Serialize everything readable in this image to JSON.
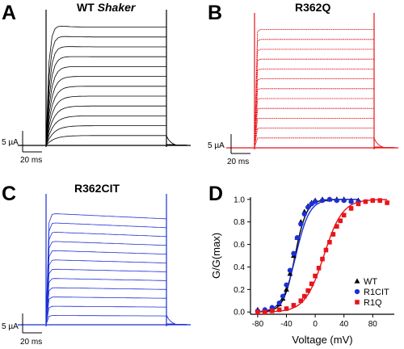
{
  "panels": [
    {
      "letter": "A",
      "title": "WT ",
      "title_italic": "Shaker",
      "color": "#000000",
      "scale_current": "5 µA",
      "scale_time": "20 ms"
    },
    {
      "letter": "B",
      "title": "R362Q",
      "color": "#e8141b",
      "scale_current": "5 µA",
      "scale_time": "20 ms"
    },
    {
      "letter": "C",
      "title": "R362CIT",
      "color": "#1b2fd6",
      "scale_current": "5 µA",
      "scale_time": "20 ms"
    },
    {
      "letter": "D"
    }
  ],
  "chart_data": {
    "type": "scatter",
    "ylabel": "G/G(max)",
    "xlabel": "Voltage (mV)",
    "xlim": [
      -90,
      110
    ],
    "ylim": [
      -0.02,
      1.02
    ],
    "xticks": [
      "-80",
      "-40",
      "0",
      "40",
      "80"
    ],
    "xtick_values": [
      -80,
      -40,
      0,
      40,
      80
    ],
    "yticks": [
      "0.0",
      "0.2",
      "0.4",
      "0.6",
      "0.8",
      "1.0"
    ],
    "ytick_values": [
      0,
      0.2,
      0.4,
      0.6,
      0.8,
      1.0
    ],
    "legend_position": "lower-right",
    "series": [
      {
        "name": "WT",
        "color": "#000000",
        "marker": "triangle",
        "x": [
          -80,
          -70,
          -60,
          -50,
          -45,
          -40,
          -35,
          -30,
          -25,
          -20,
          -15,
          -10,
          -5,
          0,
          10,
          20,
          30,
          40,
          50,
          60
        ],
        "y": [
          0.02,
          0.02,
          0.03,
          0.07,
          0.12,
          0.2,
          0.34,
          0.5,
          0.66,
          0.8,
          0.89,
          0.94,
          0.97,
          0.99,
          1.0,
          1.0,
          1.0,
          1.0,
          0.99,
          0.99
        ]
      },
      {
        "name": "R1CIT",
        "color": "#1b2fd6",
        "marker": "circle",
        "x": [
          -80,
          -70,
          -60,
          -50,
          -45,
          -40,
          -35,
          -30,
          -25,
          -20,
          -15,
          -10,
          -5,
          0,
          10,
          20,
          30,
          40,
          50,
          60
        ],
        "y": [
          0.01,
          0.02,
          0.04,
          0.08,
          0.14,
          0.24,
          0.37,
          0.52,
          0.66,
          0.78,
          0.87,
          0.93,
          0.96,
          0.98,
          0.99,
          1.0,
          0.99,
          0.99,
          0.98,
          0.98
        ]
      },
      {
        "name": "R1Q",
        "color": "#e8141b",
        "marker": "square",
        "x": [
          -80,
          -70,
          -60,
          -50,
          -40,
          -30,
          -20,
          -15,
          -10,
          -5,
          0,
          5,
          10,
          15,
          20,
          25,
          30,
          35,
          40,
          50,
          60,
          70,
          80,
          90,
          100
        ],
        "y": [
          0.0,
          0.0,
          0.01,
          0.02,
          0.03,
          0.06,
          0.1,
          0.14,
          0.19,
          0.25,
          0.32,
          0.39,
          0.47,
          0.55,
          0.62,
          0.69,
          0.76,
          0.81,
          0.86,
          0.92,
          0.96,
          0.98,
          0.99,
          0.99,
          0.97
        ]
      }
    ]
  }
}
